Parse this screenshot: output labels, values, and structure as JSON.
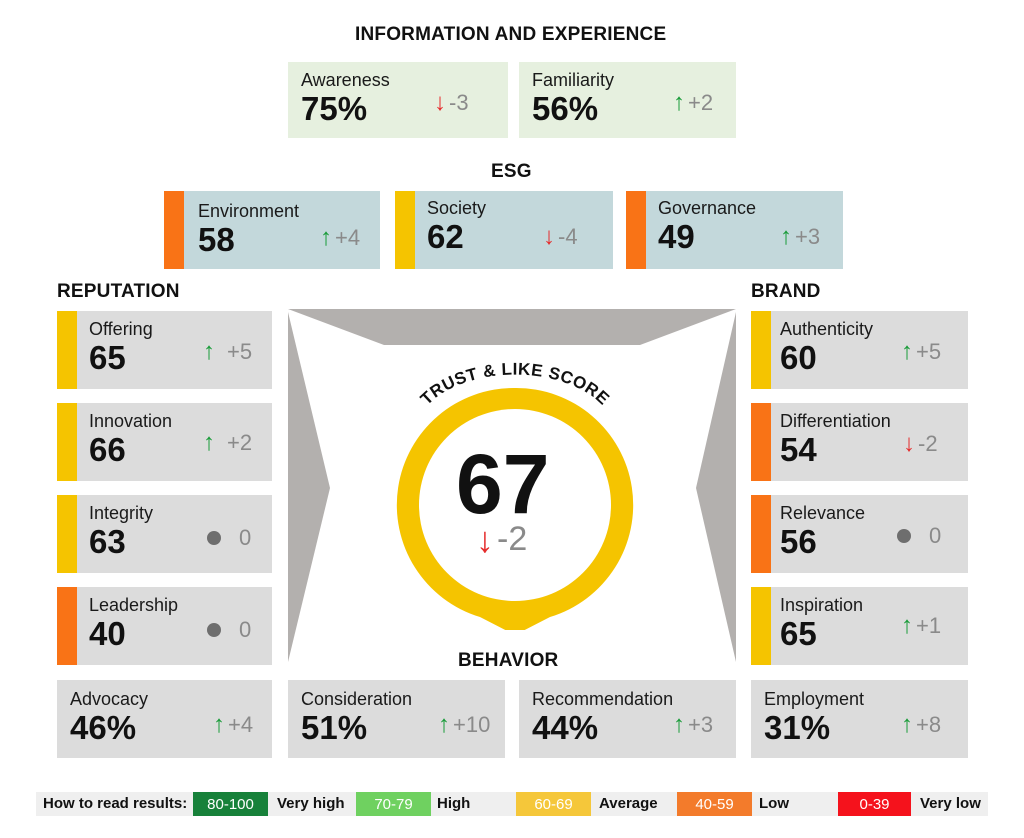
{
  "sections": {
    "info": "INFORMATION AND EXPERIENCE",
    "esg": "ESG",
    "reputation": "REPUTATION",
    "brand": "BRAND",
    "behavior": "BEHAVIOR"
  },
  "score": {
    "title": "TRUST & LIKE SCORE",
    "value": "67",
    "change": "-2",
    "direction": "down",
    "color": "#f5c400"
  },
  "info": [
    {
      "label": "Awareness",
      "value": "75%",
      "change": "-3",
      "direction": "down"
    },
    {
      "label": "Familiarity",
      "value": "56%",
      "change": "+2",
      "direction": "up"
    }
  ],
  "esg": [
    {
      "label": "Environment",
      "value": "58",
      "change": "+4",
      "direction": "up",
      "color": "#f97316"
    },
    {
      "label": "Society",
      "value": "62",
      "change": "-4",
      "direction": "down",
      "color": "#f5c400"
    },
    {
      "label": "Governance",
      "value": "49",
      "change": "+3",
      "direction": "up",
      "color": "#f97316"
    }
  ],
  "reputation": [
    {
      "label": "Offering",
      "value": "65",
      "change": "+5",
      "direction": "up",
      "color": "#f5c400"
    },
    {
      "label": "Innovation",
      "value": "66",
      "change": "+2",
      "direction": "up",
      "color": "#f5c400"
    },
    {
      "label": "Integrity",
      "value": "63",
      "change": "0",
      "direction": "flat",
      "color": "#f5c400"
    },
    {
      "label": "Leadership",
      "value": "40",
      "change": "0",
      "direction": "flat",
      "color": "#f97316"
    }
  ],
  "brand": [
    {
      "label": "Authenticity",
      "value": "60",
      "change": "+5",
      "direction": "up",
      "color": "#f5c400"
    },
    {
      "label": "Differentiation",
      "value": "54",
      "change": "-2",
      "direction": "down",
      "color": "#f97316"
    },
    {
      "label": "Relevance",
      "value": "56",
      "change": "0",
      "direction": "flat",
      "color": "#f97316"
    },
    {
      "label": "Inspiration",
      "value": "65",
      "change": "+1",
      "direction": "up",
      "color": "#f5c400"
    }
  ],
  "behavior": [
    {
      "label": "Advocacy",
      "value": "46%",
      "change": "+4",
      "direction": "up"
    },
    {
      "label": "Consideration",
      "value": "51%",
      "change": "+10",
      "direction": "up"
    },
    {
      "label": "Recommendation",
      "value": "44%",
      "change": "+3",
      "direction": "up"
    },
    {
      "label": "Employment",
      "value": "31%",
      "change": "+8",
      "direction": "up"
    }
  ],
  "legend": {
    "title": "How to read results:",
    "items": [
      {
        "range": "80-100",
        "label": "Very high",
        "color": "#17813a"
      },
      {
        "range": "70-79",
        "label": "High",
        "color": "#6fd160"
      },
      {
        "range": "60-69",
        "label": "Average",
        "color": "#f5c73a"
      },
      {
        "range": "40-59",
        "label": "Low",
        "color": "#f37b2b"
      },
      {
        "range": "0-39",
        "label": "Very low",
        "color": "#f5121c"
      }
    ]
  }
}
